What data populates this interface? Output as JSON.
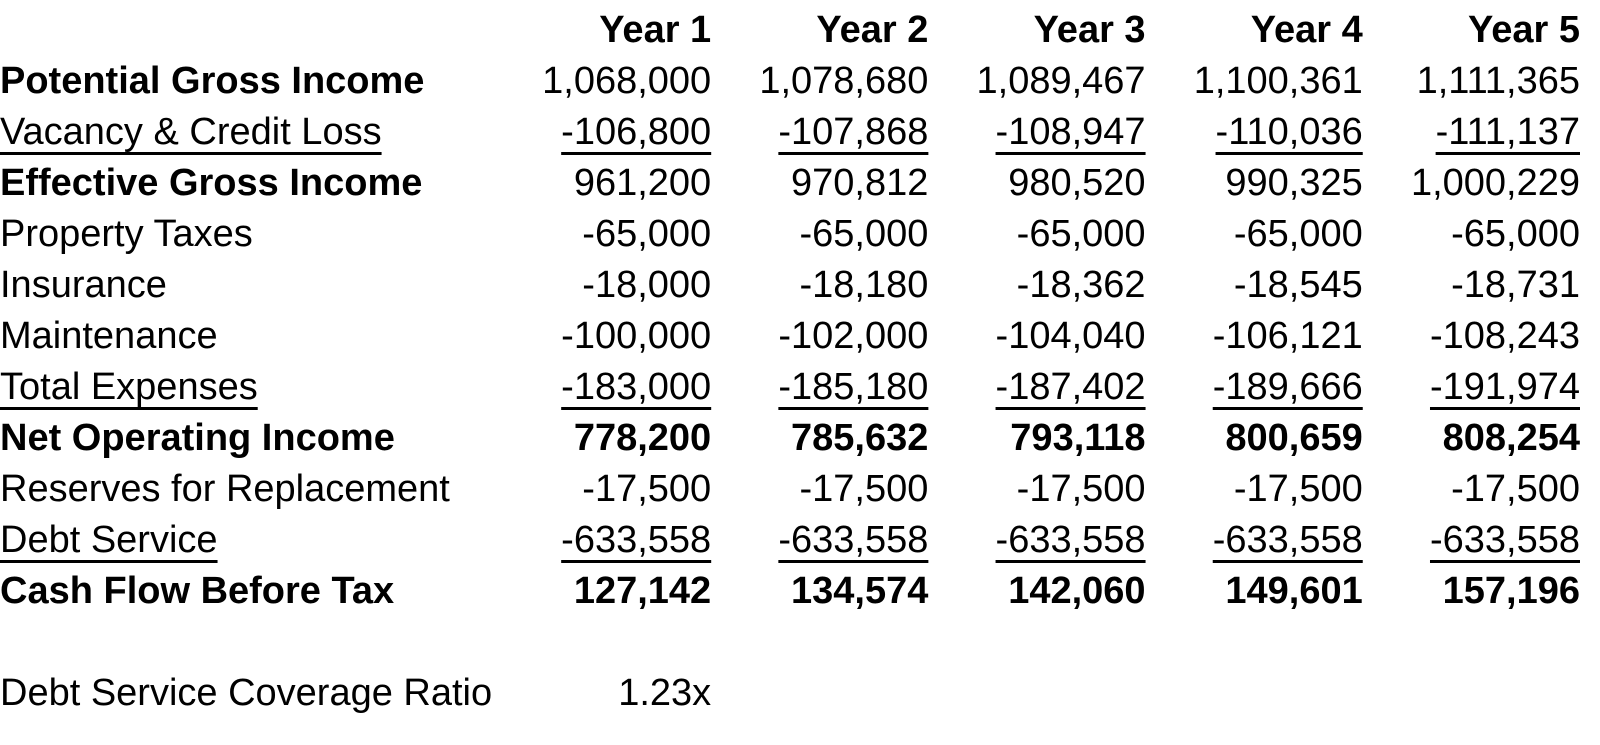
{
  "colors": {
    "background": "#ffffff",
    "text": "#000000"
  },
  "table": {
    "header": {
      "label": "",
      "columns": [
        "Year 1",
        "Year 2",
        "Year 3",
        "Year 4",
        "Year 5"
      ]
    },
    "rows": [
      {
        "label": "Potential Gross Income",
        "values": [
          "1,068,000",
          "1,078,680",
          "1,089,467",
          "1,100,361",
          "1,111,365"
        ]
      },
      {
        "label": "Vacancy & Credit Loss",
        "values": [
          "-106,800",
          "-107,868",
          "-108,947",
          "-110,036",
          "-111,137"
        ]
      },
      {
        "label": "Effective Gross Income",
        "values": [
          "961,200",
          "970,812",
          "980,520",
          "990,325",
          "1,000,229"
        ]
      },
      {
        "label": "Property Taxes",
        "values": [
          "-65,000",
          "-65,000",
          "-65,000",
          "-65,000",
          "-65,000"
        ]
      },
      {
        "label": "Insurance",
        "values": [
          "-18,000",
          "-18,180",
          "-18,362",
          "-18,545",
          "-18,731"
        ]
      },
      {
        "label": "Maintenance",
        "values": [
          "-100,000",
          "-102,000",
          "-104,040",
          "-106,121",
          "-108,243"
        ]
      },
      {
        "label": "Total Expenses",
        "values": [
          "-183,000",
          "-185,180",
          "-187,402",
          "-189,666",
          "-191,974"
        ]
      },
      {
        "label": "Net Operating Income",
        "values": [
          "778,200",
          "785,632",
          "793,118",
          "800,659",
          "808,254"
        ]
      },
      {
        "label": "Reserves for Replacement",
        "values": [
          "-17,500",
          "-17,500",
          "-17,500",
          "-17,500",
          "-17,500"
        ]
      },
      {
        "label": "Debt Service",
        "values": [
          "-633,558",
          "-633,558",
          "-633,558",
          "-633,558",
          "-633,558"
        ]
      },
      {
        "label": "Cash Flow Before Tax",
        "values": [
          "127,142",
          "134,574",
          "142,060",
          "149,601",
          "157,196"
        ]
      }
    ],
    "footer": {
      "label": "Debt Service Coverage Ratio",
      "value": "1.23x"
    }
  },
  "chart_data": {
    "type": "table",
    "categories": [
      "Year 1",
      "Year 2",
      "Year 3",
      "Year 4",
      "Year 5"
    ],
    "series": [
      {
        "name": "Potential Gross Income",
        "values": [
          1068000,
          1078680,
          1089467,
          1100361,
          1111365
        ]
      },
      {
        "name": "Vacancy & Credit Loss",
        "values": [
          -106800,
          -107868,
          -108947,
          -110036,
          -111137
        ]
      },
      {
        "name": "Effective Gross Income",
        "values": [
          961200,
          970812,
          980520,
          990325,
          1000229
        ]
      },
      {
        "name": "Property Taxes",
        "values": [
          -65000,
          -65000,
          -65000,
          -65000,
          -65000
        ]
      },
      {
        "name": "Insurance",
        "values": [
          -18000,
          -18180,
          -18362,
          -18545,
          -18731
        ]
      },
      {
        "name": "Maintenance",
        "values": [
          -100000,
          -102000,
          -104040,
          -106121,
          -108243
        ]
      },
      {
        "name": "Total Expenses",
        "values": [
          -183000,
          -185180,
          -187402,
          -189666,
          -191974
        ]
      },
      {
        "name": "Net Operating Income",
        "values": [
          778200,
          785632,
          793118,
          800659,
          808254
        ]
      },
      {
        "name": "Reserves for Replacement",
        "values": [
          -17500,
          -17500,
          -17500,
          -17500,
          -17500
        ]
      },
      {
        "name": "Debt Service",
        "values": [
          -633558,
          -633558,
          -633558,
          -633558,
          -633558
        ]
      },
      {
        "name": "Cash Flow Before Tax",
        "values": [
          127142,
          134574,
          142060,
          149601,
          157196
        ]
      }
    ],
    "annotations": [
      {
        "label": "Debt Service Coverage Ratio",
        "value": "1.23x"
      }
    ]
  }
}
